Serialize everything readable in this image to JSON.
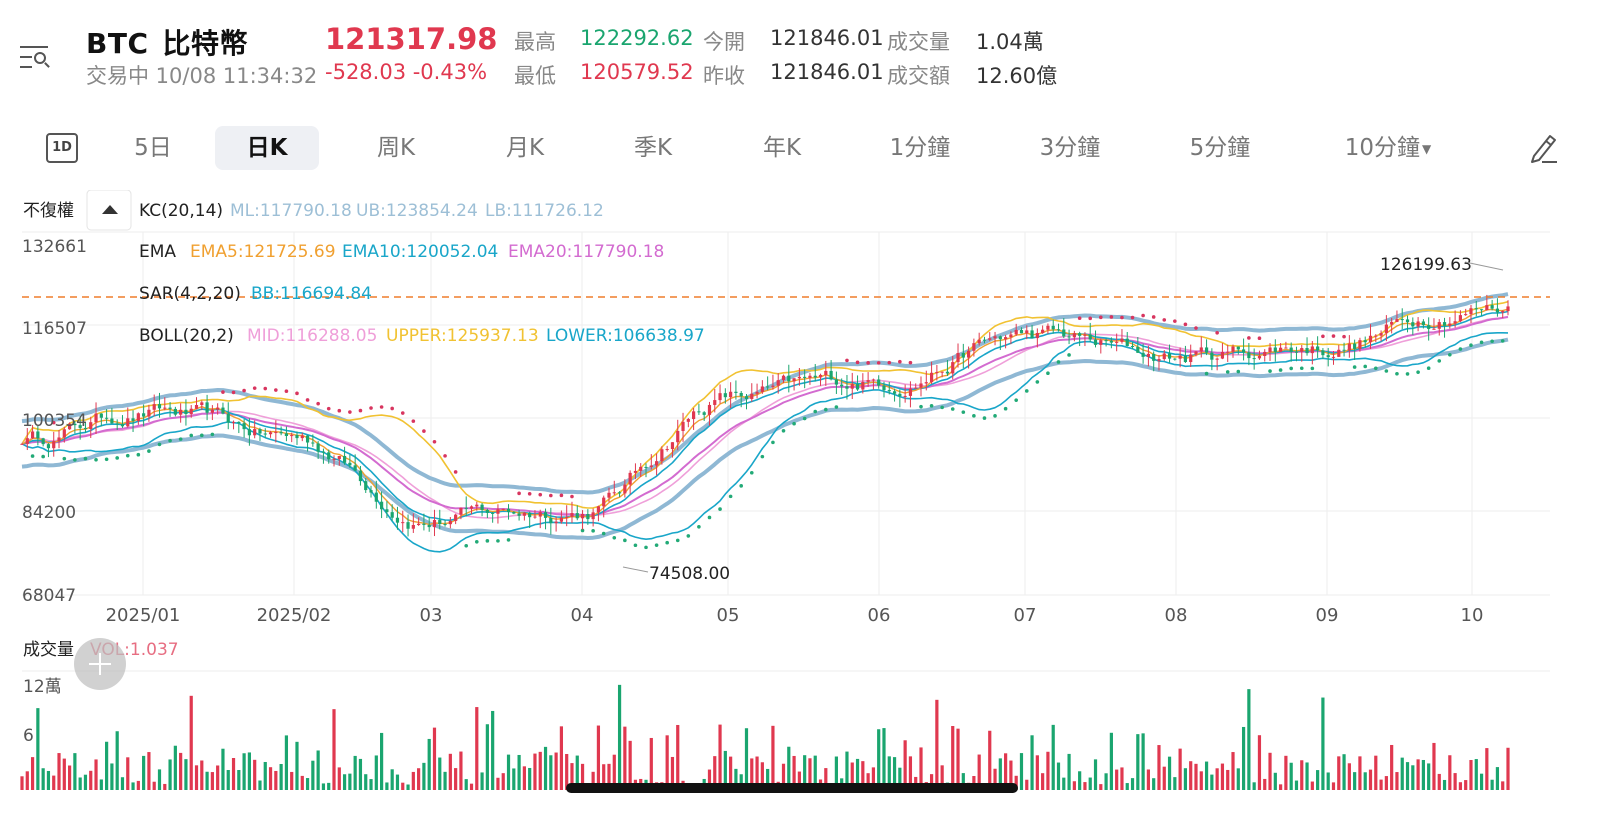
{
  "header": {
    "symbol": "BTC",
    "name": "比特幣",
    "status": "交易中 10/08 11:34:32",
    "price": "121317.98",
    "change": "-528.03 -0.43%",
    "stats": [
      {
        "label": "最高",
        "value": "122292.62",
        "tone": "green"
      },
      {
        "label": "最低",
        "value": "120579.52",
        "tone": "red"
      },
      {
        "label": "今開",
        "value": "121846.01",
        "tone": "dark"
      },
      {
        "label": "昨收",
        "value": "121846.01",
        "tone": "dark"
      },
      {
        "label": "成交量",
        "value": "1.04萬",
        "tone": "dark"
      },
      {
        "label": "成交額",
        "value": "12.60億",
        "tone": "dark"
      }
    ]
  },
  "tabs": {
    "icon_label": "1D",
    "items": [
      "5日",
      "日K",
      "周K",
      "月K",
      "季K",
      "年K",
      "1分鐘",
      "3分鐘",
      "5分鐘",
      "10分鐘"
    ],
    "active": "日K"
  },
  "indicators": {
    "adjust": "不復權",
    "kc_label": "KC(20,14)",
    "kc_ml": "ML:117790.18",
    "kc_ub": "UB:123854.24",
    "kc_lb": "LB:111726.12",
    "ema_label": "EMA",
    "ema5": "EMA5:121725.69",
    "ema10": "EMA10:120052.04",
    "ema20": "EMA20:117790.18",
    "sar_label": "SAR(4,2,20)",
    "sar_bb": "BB:116694.84",
    "boll_label": "BOLL(20,2)",
    "boll_mid": "MID:116288.05",
    "boll_upper": "UPPER:125937.13",
    "boll_lower": "LOWER:106638.97",
    "volume_label": "成交量",
    "volume_value": "VOL:1.037"
  },
  "colors": {
    "up": "#e0384f",
    "down": "#1aa56f",
    "ema5": "#f0a030",
    "ema10": "#19a6c9",
    "ema20": "#d36bd0",
    "kc": "#8fb8d4",
    "boll_upper": "#f1c232",
    "boll_mid": "#ef9fd9",
    "boll_lower": "#19a6c9",
    "sar_up": "#22aa77",
    "sar_down": "#d8355f",
    "price_line": "#ef7d2b"
  },
  "chart_data": {
    "type": "candlestick",
    "y_ticks": [
      "132661",
      "116507",
      "100354",
      "84200",
      "68047"
    ],
    "ylim": [
      68047,
      132661
    ],
    "x_ticks": [
      "2025/01",
      "2025/02",
      "03",
      "04",
      "05",
      "06",
      "07",
      "08",
      "09",
      "10"
    ],
    "annotations": {
      "high": "126199.63",
      "low": "74508.00"
    },
    "current_price": 121317.98,
    "monthly_close_trace": [
      {
        "month": "2024/12",
        "value": 97000
      },
      {
        "month": "2025/01",
        "value": 102000
      },
      {
        "month": "2025/02",
        "value": 97000
      },
      {
        "month": "2025/03",
        "value": 82500
      },
      {
        "month": "2025/04",
        "value": 84000
      },
      {
        "month": "2025/05",
        "value": 104500
      },
      {
        "month": "2025/06",
        "value": 107500
      },
      {
        "month": "2025/07",
        "value": 115800
      },
      {
        "month": "2025/08",
        "value": 112000
      },
      {
        "month": "2025/09",
        "value": 114200
      },
      {
        "month": "2025/10",
        "value": 121300
      }
    ],
    "volume": {
      "y_ticks": [
        "12萬",
        "6"
      ],
      "ylim": [
        0,
        120000
      ]
    }
  }
}
